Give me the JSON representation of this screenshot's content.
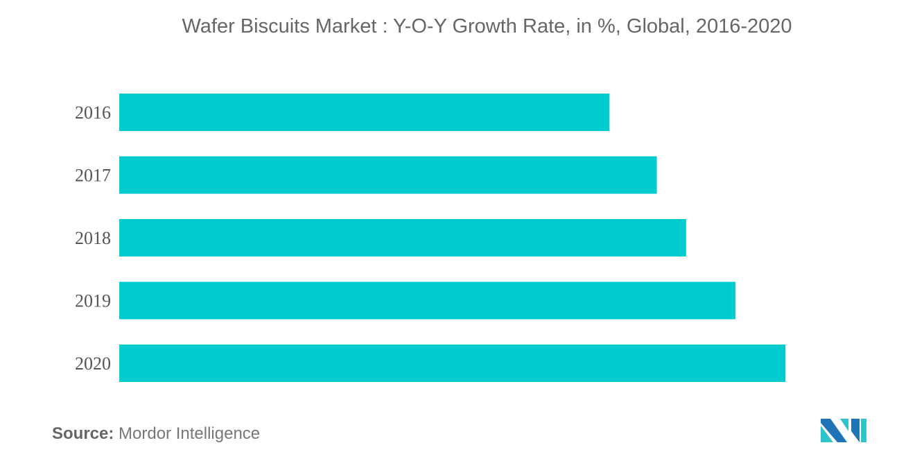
{
  "chart_data": {
    "type": "bar",
    "orientation": "horizontal",
    "title": "Wafer Biscuits Market : Y-O-Y Growth Rate, in %, Global, 2016-2020",
    "categories": [
      "2016",
      "2017",
      "2018",
      "2019",
      "2020"
    ],
    "values": [
      73.6,
      80.7,
      85.1,
      92.5,
      100
    ],
    "value_scale": "relative to largest bar (no value axis shown)",
    "xlim": [
      0,
      100
    ],
    "grid": false,
    "color": "#00CCD0"
  },
  "source": {
    "label": "Source:",
    "text": "Mordor Intelligence"
  },
  "logo": {
    "colors": [
      "#1F73B7",
      "#2EC4C9"
    ]
  }
}
